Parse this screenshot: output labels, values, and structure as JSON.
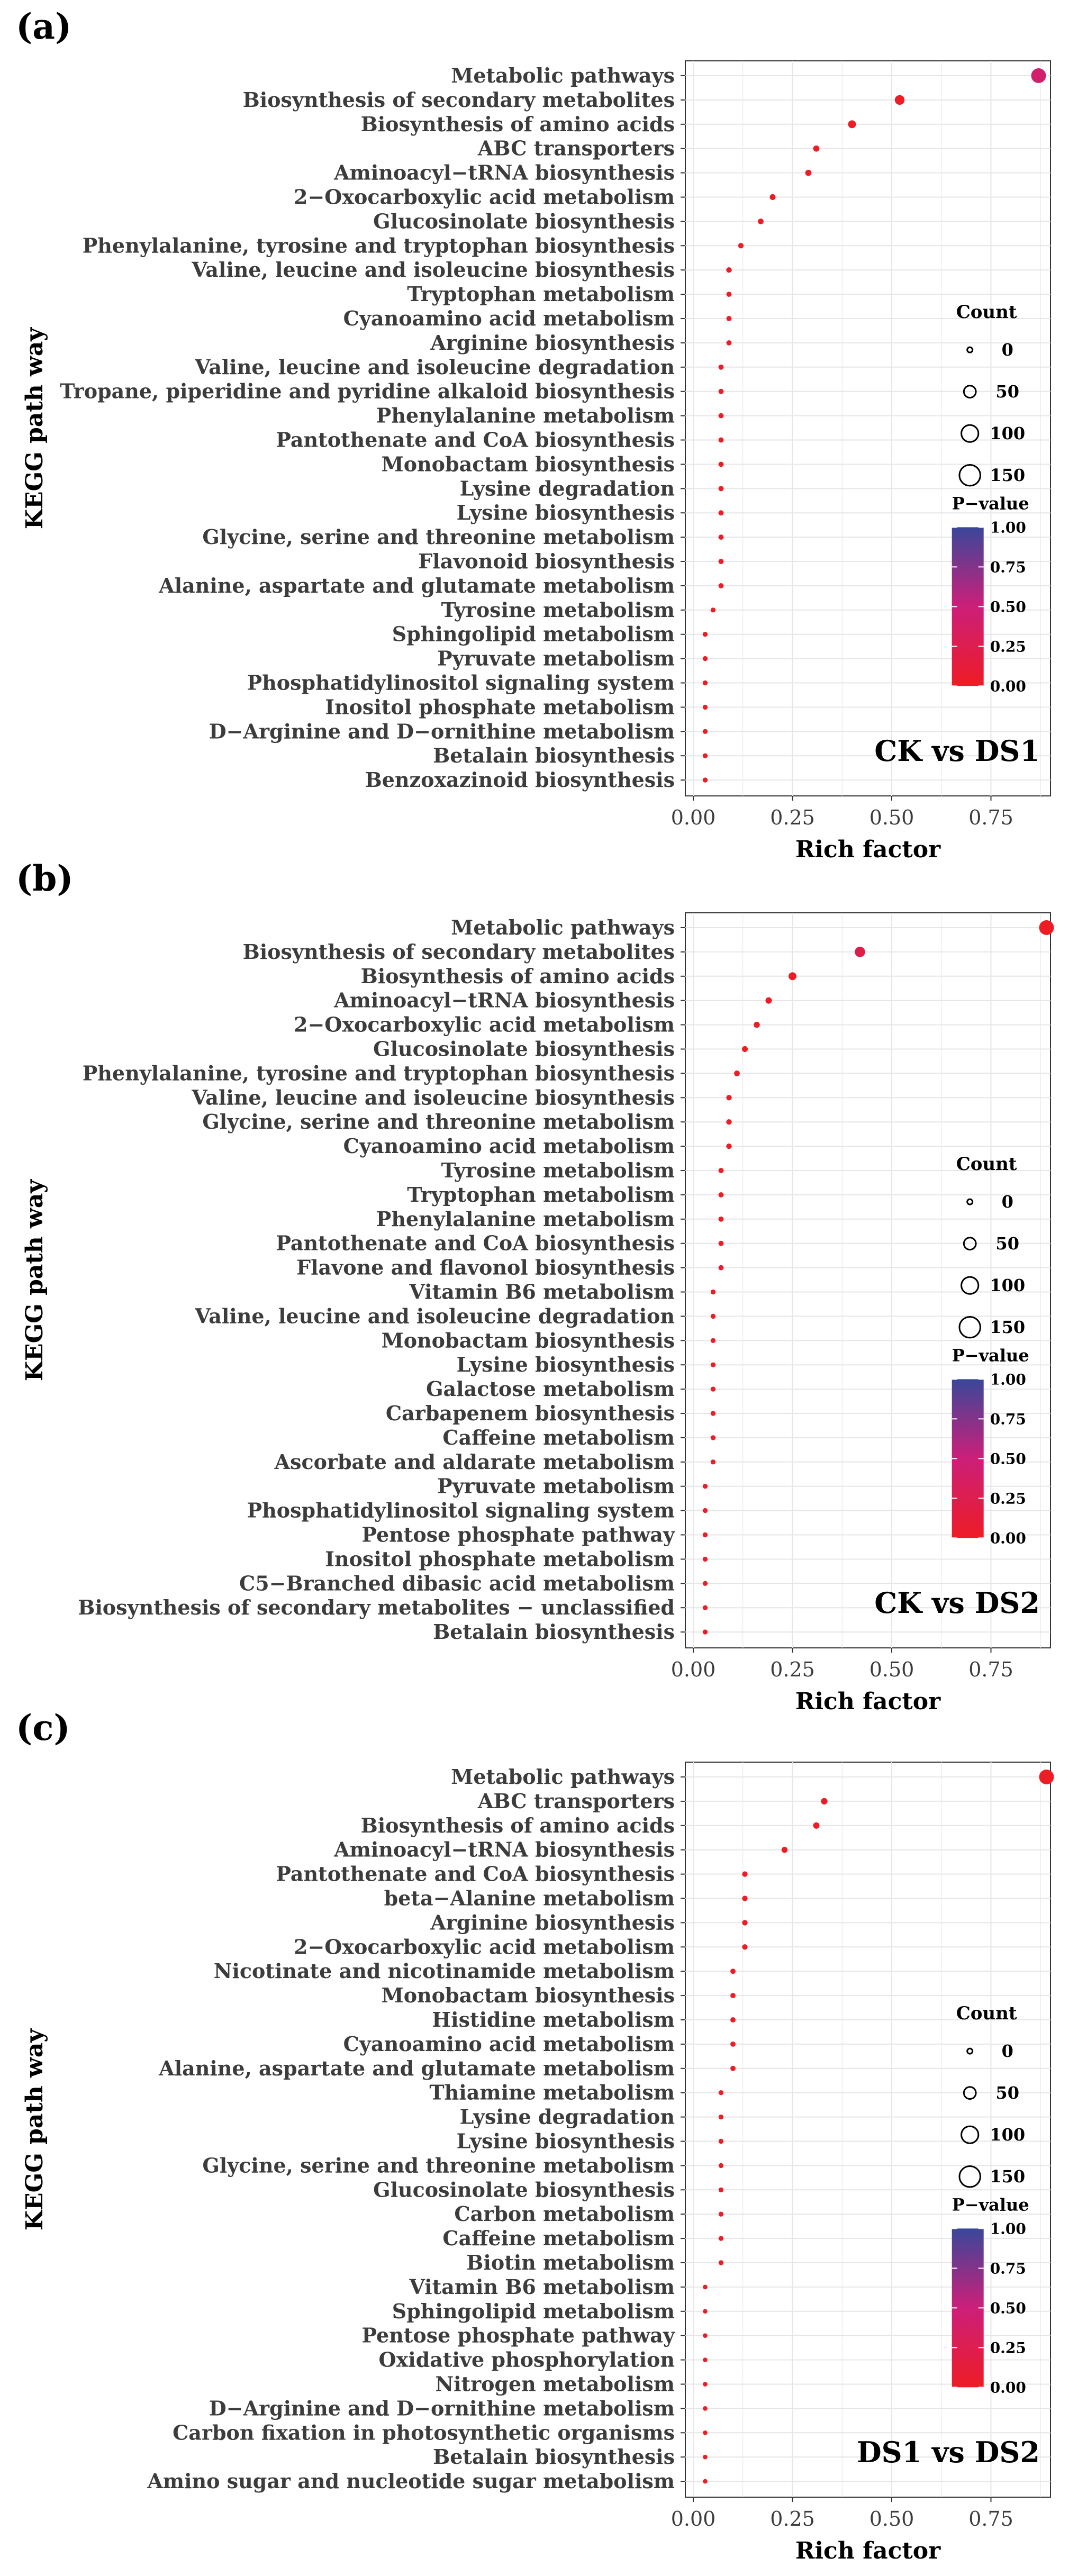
{
  "figure": {
    "common": {
      "xlabel": "Rich factor",
      "ylabel": "KEGG path way",
      "x_ticks": [
        0.0,
        0.25,
        0.5,
        0.75
      ],
      "x_tick_labels": [
        "0.00",
        "0.25",
        "0.50",
        "0.75"
      ],
      "size_legend_title": "Count",
      "color_legend_title": "P−value",
      "color_tick_labels": [
        "1.00",
        "0.75",
        "0.50",
        "0.25",
        "0.00"
      ],
      "colors": {
        "low_p": "#ee1c25",
        "mid_p": "#cc1f79",
        "high_p": "#39479a",
        "panel_bg": "#ffffff",
        "grid": "#e6e6e6"
      }
    }
  },
  "chart_data": [
    {
      "type": "scatter",
      "panel_label": "(a)",
      "comparison": "CK vs DS1",
      "xlabel": "Rich factor",
      "ylabel": "KEGG path way",
      "xlim": [
        -0.02,
        0.9
      ],
      "grid": true,
      "size_legend": [
        0,
        50,
        100,
        150
      ],
      "color_legend": [
        1.0,
        0.75,
        0.5,
        0.25,
        0.0
      ],
      "categories": [
        "Metabolic pathways",
        "Biosynthesis of secondary metabolites",
        "Biosynthesis of amino acids",
        "ABC transporters",
        "Aminoacyl−tRNA biosynthesis",
        "2−Oxocarboxylic acid metabolism",
        "Glucosinolate biosynthesis",
        "Phenylalanine, tyrosine and tryptophan biosynthesis",
        "Valine, leucine and isoleucine biosynthesis",
        "Tryptophan metabolism",
        "Cyanoamino acid metabolism",
        "Arginine biosynthesis",
        "Valine, leucine and isoleucine degradation",
        "Tropane, piperidine and pyridine alkaloid biosynthesis",
        "Phenylalanine metabolism",
        "Pantothenate and CoA biosynthesis",
        "Monobactam biosynthesis",
        "Lysine degradation",
        "Lysine biosynthesis",
        "Glycine, serine and threonine metabolism",
        "Flavonoid biosynthesis",
        "Alanine, aspartate and glutamate metabolism",
        "Tyrosine metabolism",
        "Sphingolipid metabolism",
        "Pyruvate metabolism",
        "Phosphatidylinositol signaling system",
        "Inositol phosphate metabolism",
        "D−Arginine and D−ornithine metabolism",
        "Betalain biosynthesis",
        "Benzoxazinoid biosynthesis"
      ],
      "rich_factor": [
        0.87,
        0.52,
        0.4,
        0.31,
        0.29,
        0.2,
        0.17,
        0.12,
        0.09,
        0.09,
        0.09,
        0.09,
        0.07,
        0.07,
        0.07,
        0.07,
        0.07,
        0.07,
        0.07,
        0.07,
        0.07,
        0.07,
        0.05,
        0.03,
        0.03,
        0.03,
        0.03,
        0.03,
        0.03,
        0.03
      ],
      "count": [
        155,
        45,
        22,
        8,
        8,
        6,
        5,
        4,
        4,
        3,
        3,
        3,
        3,
        3,
        3,
        3,
        3,
        3,
        3,
        3,
        3,
        3,
        2,
        2,
        2,
        2,
        2,
        2,
        2,
        2
      ],
      "p_value": [
        0.42,
        0.0,
        0.0,
        0.0,
        0.0,
        0.0,
        0.0,
        0.0,
        0.0,
        0.0,
        0.0,
        0.0,
        0.0,
        0.0,
        0.0,
        0.0,
        0.0,
        0.0,
        0.0,
        0.0,
        0.0,
        0.02,
        0.0,
        0.0,
        0.0,
        0.0,
        0.0,
        0.0,
        0.0,
        0.0
      ]
    },
    {
      "type": "scatter",
      "panel_label": "(b)",
      "comparison": "CK vs DS2",
      "xlabel": "Rich factor",
      "ylabel": "KEGG path way",
      "xlim": [
        -0.02,
        0.9
      ],
      "grid": true,
      "size_legend": [
        0,
        50,
        100,
        150
      ],
      "color_legend": [
        1.0,
        0.75,
        0.5,
        0.25,
        0.0
      ],
      "categories": [
        "Metabolic pathways",
        "Biosynthesis of secondary metabolites",
        "Biosynthesis of amino acids",
        "Aminoacyl−tRNA biosynthesis",
        "2−Oxocarboxylic acid metabolism",
        "Glucosinolate biosynthesis",
        "Phenylalanine, tyrosine and tryptophan biosynthesis",
        "Valine, leucine and isoleucine biosynthesis",
        "Glycine, serine and threonine metabolism",
        "Cyanoamino acid metabolism",
        "Tyrosine metabolism",
        "Tryptophan metabolism",
        "Phenylalanine metabolism",
        "Pantothenate and CoA biosynthesis",
        "Flavone and flavonol biosynthesis",
        "Vitamin B6 metabolism",
        "Valine, leucine and isoleucine degradation",
        "Monobactam biosynthesis",
        "Lysine biosynthesis",
        "Galactose metabolism",
        "Carbapenem biosynthesis",
        "Caffeine metabolism",
        "Ascorbate and aldarate metabolism",
        "Pyruvate metabolism",
        "Phosphatidylinositol signaling system",
        "Pentose phosphate pathway",
        "Inositol phosphate metabolism",
        "C5−Branched dibasic acid metabolism",
        "Biosynthesis of secondary metabolites − unclassified",
        "Betalain biosynthesis"
      ],
      "rich_factor": [
        0.89,
        0.42,
        0.25,
        0.19,
        0.16,
        0.13,
        0.11,
        0.09,
        0.09,
        0.09,
        0.07,
        0.07,
        0.07,
        0.07,
        0.07,
        0.05,
        0.05,
        0.05,
        0.05,
        0.05,
        0.05,
        0.05,
        0.05,
        0.03,
        0.03,
        0.03,
        0.03,
        0.03,
        0.03,
        0.03
      ],
      "count": [
        155,
        55,
        22,
        9,
        7,
        6,
        5,
        4,
        4,
        4,
        3,
        3,
        3,
        3,
        3,
        2,
        2,
        2,
        2,
        2,
        2,
        2,
        2,
        2,
        2,
        2,
        2,
        2,
        2,
        2
      ],
      "p_value": [
        0.0,
        0.2,
        0.0,
        0.0,
        0.0,
        0.0,
        0.0,
        0.0,
        0.0,
        0.0,
        0.0,
        0.0,
        0.0,
        0.0,
        0.05,
        0.0,
        0.0,
        0.0,
        0.0,
        0.0,
        0.0,
        0.0,
        0.0,
        0.0,
        0.0,
        0.0,
        0.0,
        0.0,
        0.0,
        0.0
      ]
    },
    {
      "type": "scatter",
      "panel_label": "(c)",
      "comparison": "DS1 vs DS2",
      "xlabel": "Rich factor",
      "ylabel": "KEGG path way",
      "xlim": [
        -0.02,
        0.9
      ],
      "grid": true,
      "size_legend": [
        0,
        50,
        100,
        150
      ],
      "color_legend": [
        1.0,
        0.75,
        0.5,
        0.25,
        0.0
      ],
      "categories": [
        "Metabolic pathways",
        "ABC transporters",
        "Biosynthesis of amino acids",
        "Aminoacyl−tRNA biosynthesis",
        "Pantothenate and CoA biosynthesis",
        "beta−Alanine metabolism",
        "Arginine biosynthesis",
        "2−Oxocarboxylic acid metabolism",
        "Nicotinate and nicotinamide metabolism",
        "Monobactam biosynthesis",
        "Histidine metabolism",
        "Cyanoamino acid metabolism",
        "Alanine, aspartate and glutamate metabolism",
        "Thiamine metabolism",
        "Lysine degradation",
        "Lysine biosynthesis",
        "Glycine, serine and threonine metabolism",
        "Glucosinolate biosynthesis",
        "Carbon metabolism",
        "Caffeine metabolism",
        "Biotin metabolism",
        "Vitamin B6 metabolism",
        "Sphingolipid metabolism",
        "Pentose phosphate pathway",
        "Oxidative phosphorylation",
        "Nitrogen metabolism",
        "D−Arginine and D−ornithine metabolism",
        "Carbon fixation in photosynthetic organisms",
        "Betalain biosynthesis",
        "Amino sugar and nucleotide sugar metabolism"
      ],
      "rich_factor": [
        0.89,
        0.33,
        0.31,
        0.23,
        0.13,
        0.13,
        0.13,
        0.13,
        0.1,
        0.1,
        0.1,
        0.1,
        0.1,
        0.07,
        0.07,
        0.07,
        0.07,
        0.07,
        0.07,
        0.07,
        0.07,
        0.03,
        0.03,
        0.03,
        0.03,
        0.03,
        0.03,
        0.03,
        0.03,
        0.03
      ],
      "count": [
        155,
        10,
        9,
        7,
        4,
        4,
        4,
        4,
        3,
        3,
        3,
        3,
        3,
        2,
        2,
        2,
        2,
        2,
        2,
        2,
        2,
        1,
        1,
        1,
        1,
        1,
        1,
        1,
        1,
        1
      ],
      "p_value": [
        0.0,
        0.0,
        0.0,
        0.0,
        0.0,
        0.0,
        0.0,
        0.0,
        0.0,
        0.0,
        0.0,
        0.0,
        0.0,
        0.0,
        0.0,
        0.0,
        0.0,
        0.0,
        0.0,
        0.0,
        0.0,
        0.0,
        0.0,
        0.0,
        0.0,
        0.0,
        0.0,
        0.0,
        0.0,
        0.0
      ]
    }
  ]
}
